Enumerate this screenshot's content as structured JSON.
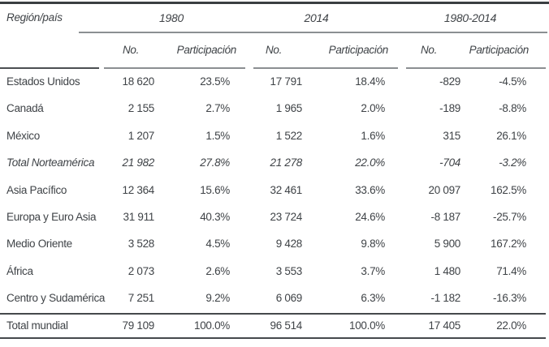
{
  "table": {
    "corner_header": "Región/país",
    "groups": [
      {
        "label": "1980"
      },
      {
        "label": "2014"
      },
      {
        "label": "1980-2014"
      }
    ],
    "subheaders": {
      "no": "No.",
      "participation": "Participación"
    },
    "rows": [
      {
        "region": "Estados Unidos",
        "no1": "18 620",
        "p1": "23.5%",
        "no2": "17 791",
        "p2": "18.4%",
        "no3": "-829",
        "p3": "-4.5%"
      },
      {
        "region": "Canadá",
        "no1": "2 155",
        "p1": "2.7%",
        "no2": "1 965",
        "p2": "2.0%",
        "no3": "-189",
        "p3": "-8.8%"
      },
      {
        "region": "México",
        "no1": "1 207",
        "p1": "1.5%",
        "no2": "1 522",
        "p2": "1.6%",
        "no3": "315",
        "p3": "26.1%"
      },
      {
        "region": "Total Norteamérica",
        "no1": "21 982",
        "p1": "27.8%",
        "no2": "21 278",
        "p2": "22.0%",
        "no3": "-704",
        "p3": "-3.2%"
      },
      {
        "region": "Asia Pacífico",
        "no1": "12 364",
        "p1": "15.6%",
        "no2": "32 461",
        "p2": "33.6%",
        "no3": "20 097",
        "p3": "162.5%"
      },
      {
        "region": "Europa y Euro Asia",
        "no1": "31 911",
        "p1": "40.3%",
        "no2": "23 724",
        "p2": "24.6%",
        "no3": "-8 187",
        "p3": "-25.7%"
      },
      {
        "region": "Medio Oriente",
        "no1": "3 528",
        "p1": "4.5%",
        "no2": "9 428",
        "p2": "9.8%",
        "no3": "5 900",
        "p3": "167.2%"
      },
      {
        "region": "África",
        "no1": "2 073",
        "p1": "2.6%",
        "no2": "3 553",
        "p2": "3.7%",
        "no3": "1 480",
        "p3": "71.4%"
      },
      {
        "region": "Centro y Sudamérica",
        "no1": "7 251",
        "p1": "9.2%",
        "no2": "6 069",
        "p2": "6.3%",
        "no3": "-1 182",
        "p3": "-16.3%"
      }
    ],
    "total_row": {
      "region": "Total mundial",
      "no1": "79 109",
      "p1": "100.0%",
      "no2": "96 514",
      "p2": "100.0%",
      "no3": "17 405",
      "p3": "22.0%"
    }
  },
  "colors": {
    "text": "#3f4347",
    "rule_dark": "#45494c",
    "rule_gray": "#8b8f92",
    "background": "#ffffff"
  }
}
